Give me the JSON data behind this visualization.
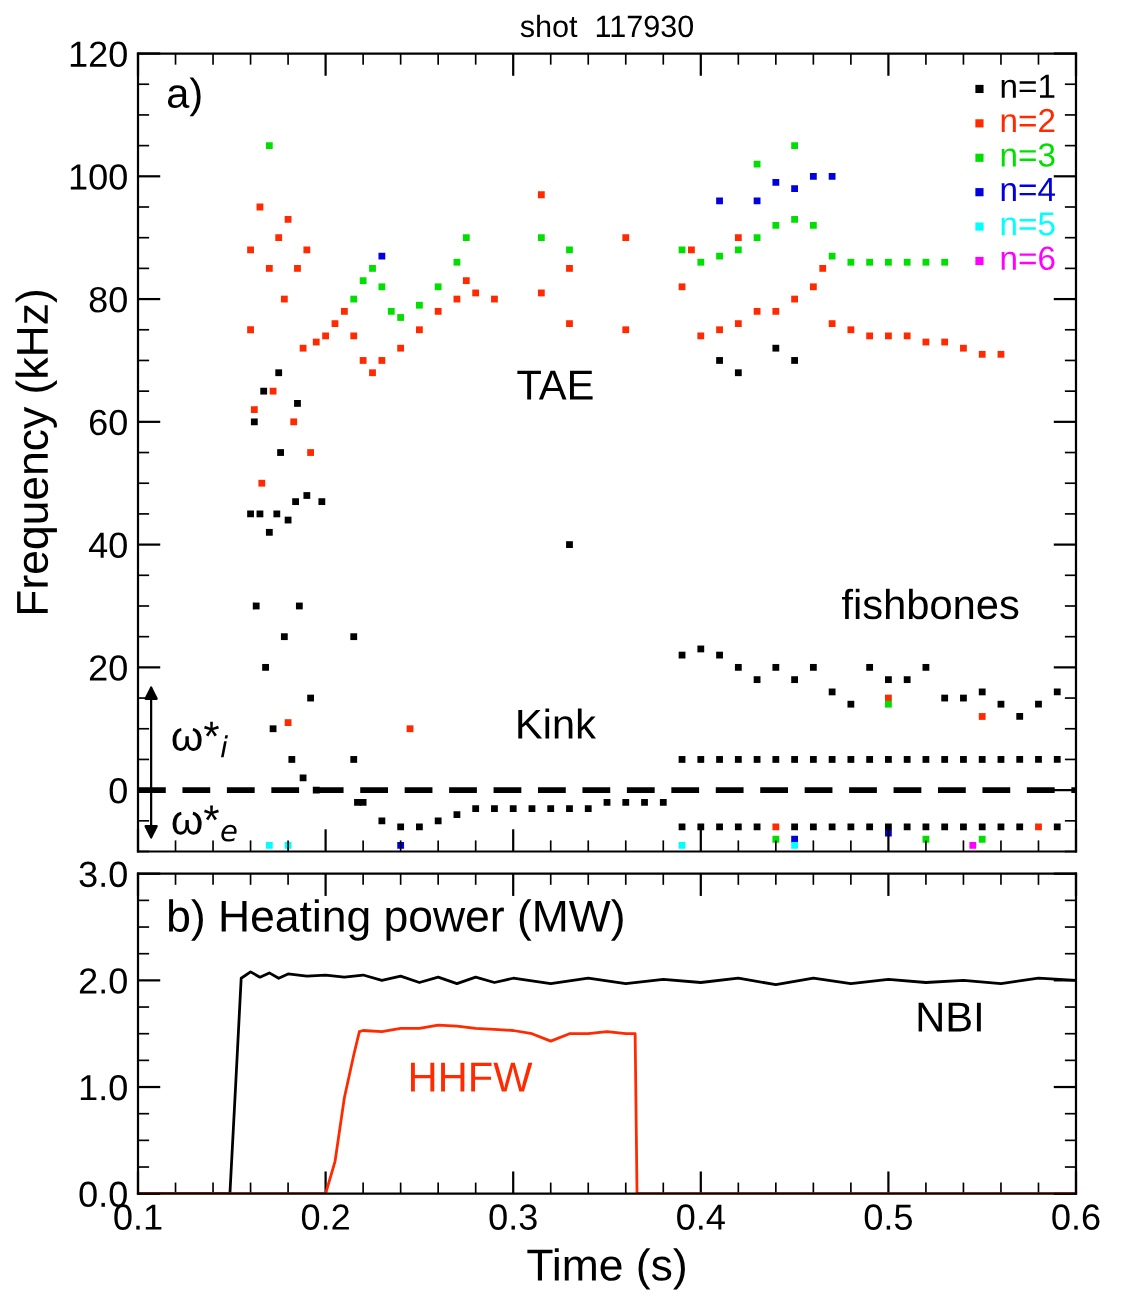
{
  "chart_data": [
    {
      "type": "scatter",
      "title": "shot  117930",
      "ylabel": "Frequency (kHz)",
      "xlim": [
        0.1,
        0.6
      ],
      "xticks": [
        0.1,
        0.2,
        0.3,
        0.4,
        0.5,
        0.6
      ],
      "ylim": [
        -10,
        120
      ],
      "yticks": [
        0,
        20,
        40,
        60,
        80,
        100,
        120
      ],
      "tick_labels": "y",
      "grid": false,
      "legend": "top right",
      "marker": "square",
      "annotations": [
        "a)",
        "TAE",
        "Kink",
        "fishbones",
        "ω*$_{i}$",
        "ω*$_{e}$"
      ],
      "ref_lines": [
        {
          "axis": "y",
          "value": 0,
          "line_style": "dashed",
          "color": "#000000"
        }
      ],
      "series": [
        {
          "name": "n=1",
          "color": "#000000",
          "x": [
            0.16,
            0.162,
            0.163,
            0.165,
            0.167,
            0.168,
            0.17,
            0.172,
            0.174,
            0.176,
            0.178,
            0.18,
            0.182,
            0.184,
            0.186,
            0.188,
            0.19,
            0.192,
            0.195,
            0.198,
            0.185,
            0.175,
            0.215,
            0.215,
            0.217,
            0.22,
            0.23,
            0.24,
            0.25,
            0.26,
            0.27,
            0.28,
            0.29,
            0.3,
            0.31,
            0.32,
            0.33,
            0.34,
            0.35,
            0.36,
            0.37,
            0.38,
            0.33,
            0.39,
            0.4,
            0.41,
            0.42,
            0.43,
            0.44,
            0.45,
            0.46,
            0.47,
            0.48,
            0.49,
            0.5,
            0.51,
            0.52,
            0.53,
            0.54,
            0.55,
            0.56,
            0.57,
            0.58,
            0.59,
            0.39,
            0.4,
            0.41,
            0.42,
            0.43,
            0.44,
            0.45,
            0.46,
            0.47,
            0.48,
            0.49,
            0.5,
            0.51,
            0.52,
            0.53,
            0.54,
            0.55,
            0.56,
            0.57,
            0.58,
            0.59,
            0.39,
            0.4,
            0.41,
            0.42,
            0.43,
            0.44,
            0.45,
            0.46,
            0.47,
            0.48,
            0.49,
            0.5,
            0.51,
            0.52,
            0.53,
            0.54,
            0.55,
            0.56,
            0.57,
            0.58,
            0.59,
            0.41,
            0.42,
            0.44,
            0.45
          ],
          "values": [
            45,
            60,
            30,
            45,
            65,
            20,
            42,
            10,
            45,
            55,
            25,
            44,
            5,
            47,
            30,
            2,
            48,
            15,
            0,
            47,
            63,
            68,
            25,
            5,
            -2,
            -2,
            -5,
            -6,
            -6,
            -5,
            -4,
            -3,
            -3,
            -3,
            -3,
            -3,
            -3,
            -3,
            -2,
            -2,
            -2,
            -2,
            40,
            22,
            23,
            22,
            20,
            18,
            20,
            18,
            20,
            16,
            14,
            20,
            18,
            18,
            20,
            15,
            15,
            16,
            14,
            12,
            14,
            16,
            5,
            5,
            5,
            5,
            5,
            5,
            5,
            5,
            5,
            5,
            5,
            5,
            5,
            5,
            5,
            5,
            5,
            5,
            5,
            5,
            5,
            -6,
            -6,
            -6,
            -6,
            -6,
            null,
            -6,
            -6,
            -6,
            -6,
            -6,
            -6,
            -6,
            -6,
            -6,
            -6,
            -6,
            -6,
            -6,
            null,
            -6,
            70,
            68,
            72,
            70
          ]
        },
        {
          "name": "n=2",
          "color": "#ff2a00",
          "x": [
            0.16,
            0.16,
            0.162,
            0.165,
            0.166,
            0.17,
            0.172,
            0.175,
            0.178,
            0.18,
            0.183,
            0.185,
            0.188,
            0.19,
            0.192,
            0.195,
            0.2,
            0.205,
            0.21,
            0.215,
            0.22,
            0.225,
            0.23,
            0.24,
            0.25,
            0.26,
            0.27,
            0.275,
            0.28,
            0.29,
            0.315,
            0.315,
            0.33,
            0.33,
            0.36,
            0.36,
            0.39,
            0.4,
            0.41,
            0.42,
            0.43,
            0.44,
            0.45,
            0.46,
            0.465,
            0.47,
            0.48,
            0.49,
            0.5,
            0.51,
            0.52,
            0.53,
            0.54,
            0.55,
            0.56,
            0.18,
            0.245,
            0.44,
            0.5,
            0.55,
            0.58,
            0.395,
            0.42
          ],
          "values": [
            88,
            75,
            62,
            95,
            50,
            85,
            65,
            90,
            80,
            93,
            60,
            85,
            72,
            88,
            55,
            73,
            74,
            76,
            78,
            74,
            70,
            68,
            70,
            72,
            75,
            78,
            80,
            83,
            81,
            80,
            97,
            81,
            85,
            76,
            90,
            75,
            82,
            74,
            75,
            76,
            78,
            78,
            80,
            82,
            85,
            76,
            75,
            74,
            74,
            74,
            73,
            73,
            72,
            71,
            71,
            11,
            10,
            -6,
            15,
            12,
            -6,
            88,
            90
          ]
        },
        {
          "name": "n=3",
          "color": "#00e000",
          "x": [
            0.17,
            0.215,
            0.22,
            0.225,
            0.23,
            0.235,
            0.24,
            0.25,
            0.26,
            0.27,
            0.275,
            0.315,
            0.33,
            0.39,
            0.4,
            0.41,
            0.42,
            0.43,
            0.44,
            0.45,
            0.46,
            0.47,
            0.48,
            0.49,
            0.5,
            0.51,
            0.52,
            0.53,
            0.45,
            0.43,
            0.5,
            0.44,
            0.52,
            0.55
          ],
          "values": [
            105,
            80,
            83,
            85,
            82,
            78,
            77,
            79,
            82,
            86,
            90,
            90,
            88,
            88,
            86,
            87,
            88,
            90,
            92,
            93,
            92,
            87,
            86,
            86,
            86,
            86,
            86,
            86,
            105,
            102,
            14,
            -8,
            -8,
            -8
          ]
        },
        {
          "name": "n=4",
          "color": "#0000e0",
          "x": [
            0.41,
            0.43,
            0.44,
            0.45,
            0.46,
            0.47,
            0.23,
            0.45,
            0.5,
            0.24
          ],
          "values": [
            96,
            96,
            99,
            98,
            100,
            100,
            87,
            -8,
            -7,
            -9
          ]
        },
        {
          "name": "n=5",
          "color": "#00ffff",
          "x": [
            0.17,
            0.18,
            0.39,
            0.45
          ],
          "values": [
            -9,
            -9,
            -9,
            -9
          ]
        },
        {
          "name": "n=6",
          "color": "#ff00ff",
          "x": [
            0.545
          ],
          "values": [
            -9
          ]
        }
      ]
    },
    {
      "type": "line",
      "title": "b) Heating power (MW)",
      "xlabel": "Time (s)",
      "xlim": [
        0.1,
        0.6
      ],
      "xticks": [
        0.1,
        0.2,
        0.3,
        0.4,
        0.5,
        0.6
      ],
      "ylim": [
        0,
        3
      ],
      "yticks": [
        {
          "value": 0,
          "label": "0.0"
        },
        {
          "value": 1,
          "label": "1.0"
        },
        {
          "value": 2,
          "label": "2.0"
        },
        {
          "value": 3,
          "label": "3.0"
        }
      ],
      "grid": false,
      "marker": "none",
      "line_style": "solid",
      "series": [
        {
          "name": "NBI",
          "color": "#000000",
          "x": [
            0.1,
            0.149,
            0.152,
            0.155,
            0.16,
            0.165,
            0.17,
            0.175,
            0.18,
            0.19,
            0.2,
            0.21,
            0.22,
            0.23,
            0.24,
            0.25,
            0.26,
            0.27,
            0.28,
            0.29,
            0.3,
            0.32,
            0.34,
            0.36,
            0.38,
            0.4,
            0.42,
            0.44,
            0.46,
            0.48,
            0.5,
            0.52,
            0.54,
            0.56,
            0.58,
            0.6
          ],
          "values": [
            0,
            0,
            1.0,
            2.02,
            2.08,
            2.03,
            2.07,
            2.02,
            2.06,
            2.04,
            2.05,
            2.03,
            2.05,
            2.0,
            2.04,
            1.98,
            2.03,
            1.97,
            2.03,
            1.98,
            2.02,
            1.97,
            2.02,
            1.97,
            2.01,
            1.98,
            2.02,
            1.96,
            2.02,
            1.97,
            2.01,
            1.98,
            2.0,
            1.97,
            2.02,
            2.0
          ]
        },
        {
          "name": "HHFW",
          "color": "#ff2a00",
          "x": [
            0.1,
            0.2,
            0.205,
            0.21,
            0.215,
            0.218,
            0.22,
            0.23,
            0.24,
            0.25,
            0.26,
            0.27,
            0.28,
            0.29,
            0.3,
            0.31,
            0.32,
            0.33,
            0.34,
            0.35,
            0.36,
            0.365,
            0.366,
            0.6
          ],
          "values": [
            0,
            0,
            0.3,
            0.9,
            1.3,
            1.52,
            1.53,
            1.52,
            1.55,
            1.55,
            1.58,
            1.57,
            1.55,
            1.54,
            1.53,
            1.5,
            1.43,
            1.5,
            1.5,
            1.52,
            1.5,
            1.5,
            0,
            0
          ]
        }
      ]
    }
  ]
}
